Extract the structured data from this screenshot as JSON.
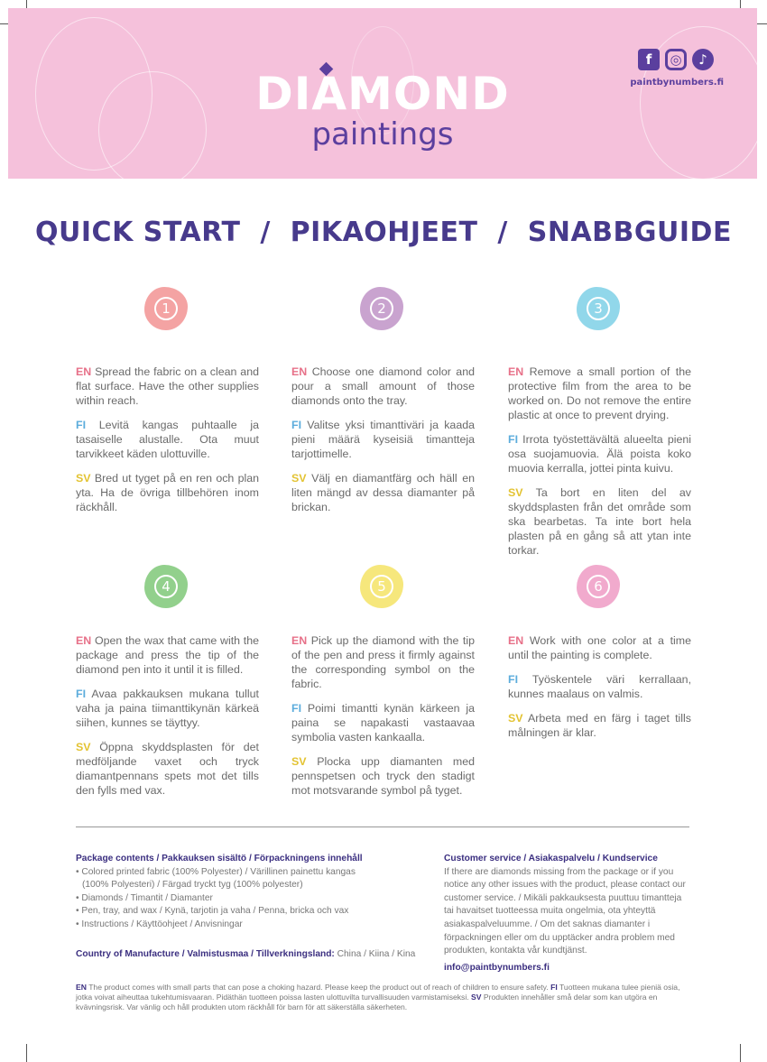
{
  "brand": {
    "main": "DIAMOND",
    "sub": "paintings",
    "website": "paintbynumbers.fi",
    "social": [
      "facebook-icon",
      "instagram-icon",
      "tiktok-icon"
    ]
  },
  "title": "QUICK START  /  PIKAOHJEET  /  SNABBGUIDE",
  "colors": {
    "title": "#473a8c",
    "en": "#e77189",
    "fi": "#5cacdc",
    "sv": "#e3c332",
    "banner": "#f5c1db"
  },
  "steps": [
    {
      "number": "1",
      "color": "#f4a3a3",
      "en": "Spread the fabric on a clean and flat surface. Have the other supplies within reach.",
      "fi": "Levitä kangas puhtaalle ja tasaiselle alustalle. Ota muut tarvikkeet käden ulottuville.",
      "sv": "Bred ut tyget på en ren och plan yta. Ha de övriga tillbehören inom räckhåll."
    },
    {
      "number": "2",
      "color": "#c9a3cf",
      "en": "Choose one diamond color and pour a small amount of those diamonds onto the tray.",
      "fi": "Valitse yksi timanttiväri ja kaada pieni määrä kyseisiä timantteja tarjottimelle.",
      "sv": "Välj en diamantfärg och häll en liten mängd av dessa diamanter på brickan."
    },
    {
      "number": "3",
      "color": "#91d7ea",
      "en": "Remove a small portion of the protective film from the area to be worked on. Do not remove the entire plastic at once to prevent drying.",
      "fi": "Irrota työstettävältä alueelta pieni osa suojamuovia. Älä poista koko muovia kerralla, jottei pinta kuivu.",
      "sv": "Ta bort en liten del av skyddsplasten från det område som ska bearbetas. Ta inte bort hela plasten på en gång så att ytan inte torkar."
    },
    {
      "number": "4",
      "color": "#92d08c",
      "en": "Open the wax that came with the package and press the tip of the diamond pen into it until it is filled.",
      "fi": "Avaa pakkauksen mukana tullut vaha ja paina tiimanttikynän kärkeä siihen, kunnes se täyttyy.",
      "sv": "Öppna skyddsplasten för det medföljande vaxet och tryck diamantpennans spets mot det tills den fylls med vax."
    },
    {
      "number": "5",
      "color": "#f6e77c",
      "en": "Pick up the diamond with the tip of the pen and press it firmly against the corresponding symbol on the fabric.",
      "fi": "Poimi timantti kynän kärkeen ja paina se napakasti vastaavaa symbolia vasten kankaalla.",
      "sv": "Plocka upp diamanten med pennspetsen och tryck den stadigt mot motsvarande symbol på tyget."
    },
    {
      "number": "6",
      "color": "#f1aacd",
      "en": "Work with one color at a time until the painting is complete.",
      "fi": "Työskentele väri kerrallaan, kunnes maalaus on valmis.",
      "sv": "Arbeta med en färg i taget tills målningen är klar."
    }
  ],
  "labels": {
    "en": "EN",
    "fi": "FI",
    "sv": "SV"
  },
  "package": {
    "heading": "Package contents / Pakkauksen sisältö / Förpackningens innehåll",
    "items": [
      "• Colored printed fabric (100% Polyester)  / Värillinen painettu kangas (100% Polyesteri) / Färgad tryckt tyg (100% polyester)",
      "• Diamonds / Timantit / Diamanter",
      "• Pen, tray, and wax / Kynä, tarjotin ja vaha / Penna, bricka och vax",
      "• Instructions / Käyttöohjeet / Anvisningar"
    ],
    "country_label": "Country of Manufacture / Valmistusmaa / Tillverkningsland:",
    "country_value": " China / Kiina / Kina"
  },
  "service": {
    "heading": "Customer service / Asiakaspalvelu / Kundservice",
    "text": "If there are diamonds missing from the package or if you notice any other issues with the product, please contact our customer service. / Mikäli pakkauksesta puuttuu timantteja tai havaitset tuotteessa muita ongelmia, ota yhteyttä asiakaspalveluumme. / Om det saknas diamanter i förpackningen eller om du upptäcker andra problem med produkten, kontakta vår kundtjänst.",
    "email": "info@paintbynumbers.fi"
  },
  "warning": {
    "en": "The product comes with small parts that can pose a choking hazard. Please keep the product out of reach of children to ensure safety.",
    "fi": "Tuotteen mukana tulee pieniä osia, jotka voivat aiheuttaa tukehtumisvaaran. Pidäthän tuotteen poissa lasten ulottuvilta turvallisuuden varmistamiseksi.",
    "sv": "Produkten innehåller små delar som kan utgöra en kvävningsrisk. Var vänlig och håll produkten utom räckhåll för barn för att säkerställa säkerheten."
  }
}
